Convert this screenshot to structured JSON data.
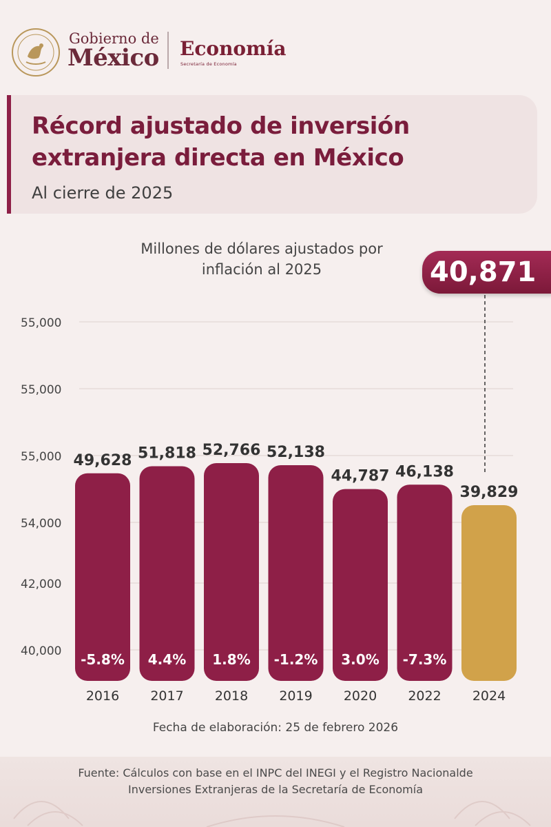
{
  "header": {
    "gob_line1": "Gobierno de",
    "gob_line2": "México",
    "agency": "Economía",
    "agency_sub": "Secretaría de Economía"
  },
  "title": "Récord ajustado de inversión extranjera directa en México",
  "subtitle": "Al cierre de 2025",
  "callout_value": "40,871",
  "footer": {
    "date": "Fecha de elaboración: 25 de febrero 2026",
    "source_line1": "Fuente: Cálculos con base en el INPC del INEGI y el Registro Nacionalde",
    "source_line2": "Inversiones Extranjeras de la Secretaría de Economía"
  },
  "colors": {
    "bar": "#8e1f47",
    "highlight_bar": "#d1a24a",
    "title": "#7a1d3c"
  },
  "chart_data": {
    "type": "bar",
    "title": "Millones de dólares ajustados por inflación al 2025",
    "categories": [
      "2016",
      "2017",
      "2018",
      "2019",
      "2020",
      "2022",
      "2024"
    ],
    "values": [
      49628,
      51818,
      52766,
      52138,
      44787,
      46138,
      39829
    ],
    "value_labels": [
      "49,628",
      "51,818",
      "52,766",
      "52,138",
      "44,787",
      "46,138",
      "39,829"
    ],
    "change_labels": [
      "-5.8%",
      "4.4%",
      "1.8%",
      "-1.2%",
      "3.0%",
      "-7.3%",
      ""
    ],
    "y_tick_labels": [
      "55,000",
      "55,000",
      "55,000",
      "54,000",
      "42,000",
      "40,000"
    ],
    "highlight_category": "2024",
    "ylim": [
      30000,
      60000
    ],
    "grid": true
  }
}
